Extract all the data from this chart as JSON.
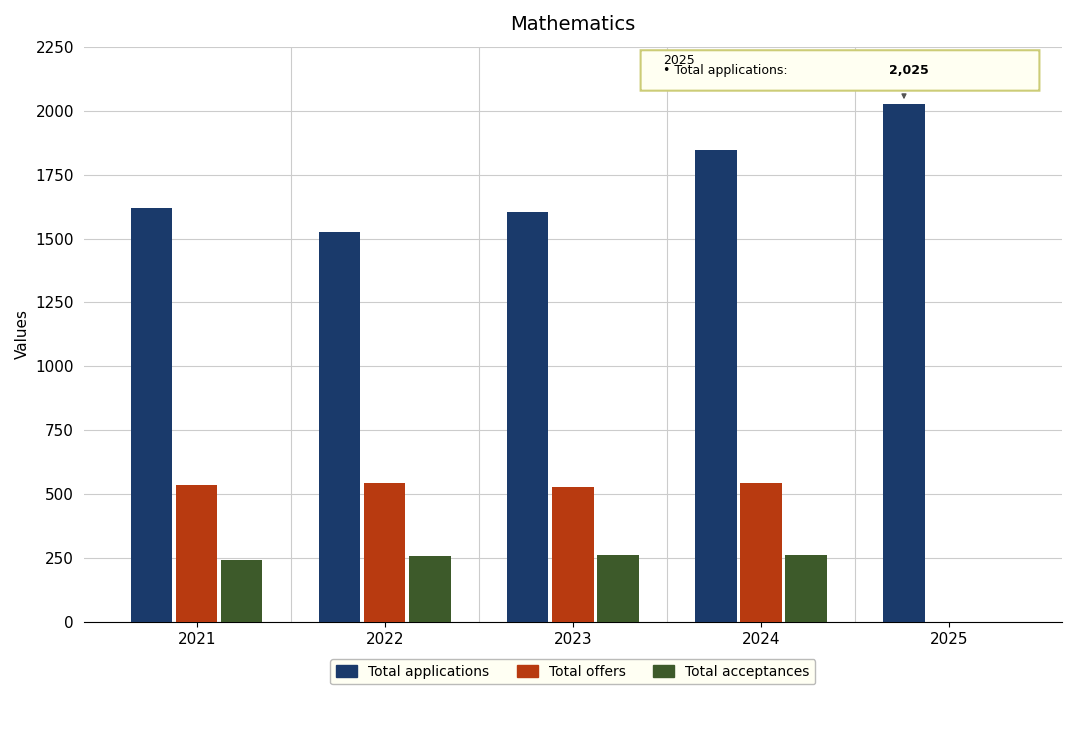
{
  "title": "Mathematics",
  "years": [
    "2021",
    "2022",
    "2023",
    "2024",
    "2025"
  ],
  "total_applications": [
    1620,
    1525,
    1605,
    1845,
    2025
  ],
  "total_offers": [
    535,
    545,
    530,
    545
  ],
  "total_acceptances": [
    245,
    258,
    262,
    263
  ],
  "bar_colors": {
    "total_applications": "#1a3a6b",
    "total_offers": "#b83a10",
    "total_acceptances": "#3d5a2a"
  },
  "ylabel": "Values",
  "ylim": [
    0,
    2250
  ],
  "yticks": [
    0,
    250,
    500,
    750,
    1000,
    1250,
    1500,
    1750,
    2000,
    2250
  ],
  "legend_labels": [
    "Total applications",
    "Total offers",
    "Total acceptances"
  ],
  "legend_facecolor": "#fffff0",
  "tooltip_facecolor": "#fffff2",
  "tooltip_edgecolor": "#cccc77",
  "background_color": "#ffffff",
  "grid_color": "#cccccc",
  "title_fontsize": 14,
  "tick_fontsize": 11,
  "label_fontsize": 11,
  "bar_width": 0.22,
  "bar_gap": 0.02
}
